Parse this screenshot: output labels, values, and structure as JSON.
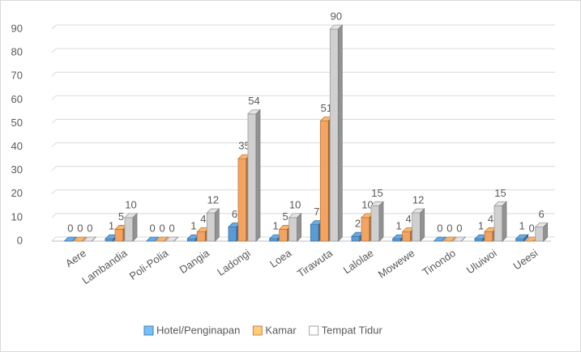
{
  "chart_data": {
    "type": "bar3d",
    "categories": [
      "Aere",
      "Lambandia",
      "Poli-Polia",
      "Dangia",
      "Ladongi",
      "Loea",
      "Tirawuta",
      "Lalolae",
      "Mowewe",
      "Tinondo",
      "Uluiwoi",
      "Ueesi"
    ],
    "series": [
      {
        "name": "Hotel/Penginapan",
        "color": "#5b9bd5",
        "values": [
          0,
          1,
          0,
          1,
          6,
          1,
          7,
          2,
          1,
          0,
          1,
          1
        ]
      },
      {
        "name": "Kamar",
        "color": "#f4a460",
        "values": [
          0,
          5,
          0,
          4,
          35,
          5,
          51,
          10,
          4,
          0,
          4,
          0
        ]
      },
      {
        "name": "Tempat Tidur",
        "color": "#d0d0d0",
        "values": [
          0,
          10,
          0,
          12,
          54,
          10,
          90,
          15,
          12,
          0,
          15,
          6
        ]
      }
    ],
    "ylim": [
      0,
      90
    ],
    "yticks": [
      0,
      10,
      20,
      30,
      40,
      50,
      60,
      70,
      80,
      90
    ],
    "grid": true,
    "legend": "bottom"
  }
}
